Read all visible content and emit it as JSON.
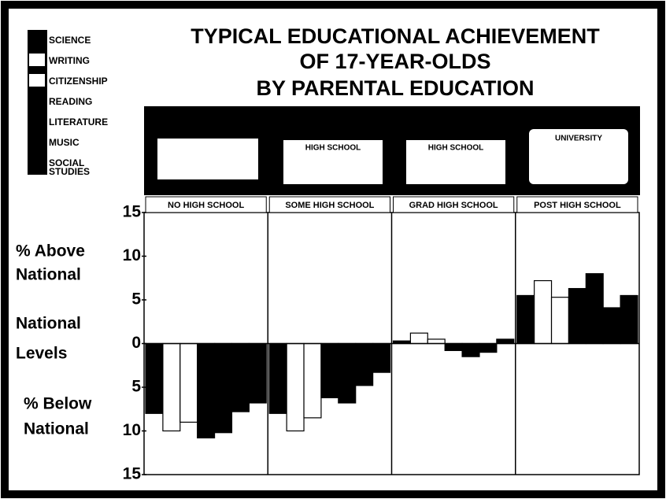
{
  "chart_data": {
    "type": "bar",
    "title": [
      "TYPICAL EDUCATIONAL ACHIEVEMENT",
      "OF 17-YEAR-OLDS",
      "BY PARENTAL EDUCATION"
    ],
    "categories": [
      "NO HIGH SCHOOL",
      "SOME HIGH SCHOOL",
      "GRAD HIGH SCHOOL",
      "POST HIGH SCHOOL"
    ],
    "illustration_labels": [
      "HIGH SCHOOL",
      "HIGH SCHOOL",
      "UNIVERSITY"
    ],
    "y_annotations": [
      [
        "% Above",
        "National"
      ],
      [
        "National",
        "Levels"
      ],
      [
        "% Below",
        "National"
      ]
    ],
    "series": [
      {
        "name": [
          "SCIENCE"
        ],
        "color": "#000000",
        "values": [
          -8,
          -8,
          0.3,
          5.5
        ]
      },
      {
        "name": [
          "WRITING"
        ],
        "color": "#ffffff",
        "values": [
          -10,
          -10,
          1.2,
          7.2
        ]
      },
      {
        "name": [
          "CITIZENSHIP"
        ],
        "color": "#ffffff",
        "values": [
          -9,
          -8.5,
          0.5,
          5.3
        ]
      },
      {
        "name": [
          "READING"
        ],
        "color": "#000000",
        "values": [
          -10.8,
          -6.2,
          -0.8,
          6.3
        ]
      },
      {
        "name": [
          "LITERATURE"
        ],
        "color": "#000000",
        "values": [
          -10.2,
          -6.8,
          -1.5,
          8.0
        ]
      },
      {
        "name": [
          "MUSIC"
        ],
        "color": "#000000",
        "values": [
          -7.8,
          -4.8,
          -1.0,
          4.1
        ]
      },
      {
        "name": [
          "SOCIAL",
          "STUDIES"
        ],
        "color": "#000000",
        "values": [
          -6.8,
          -3.3,
          0.5,
          5.5
        ]
      }
    ],
    "ylim": [
      -15,
      15
    ],
    "yticks": [
      {
        "value": 15,
        "label": "15"
      },
      {
        "value": 10,
        "label": "10"
      },
      {
        "value": 5,
        "label": "5"
      },
      0,
      {
        "value": -5,
        "label": "5"
      },
      {
        "value": -10,
        "label": "10"
      },
      {
        "value": -15,
        "label": "15"
      }
    ],
    "grid": false
  }
}
